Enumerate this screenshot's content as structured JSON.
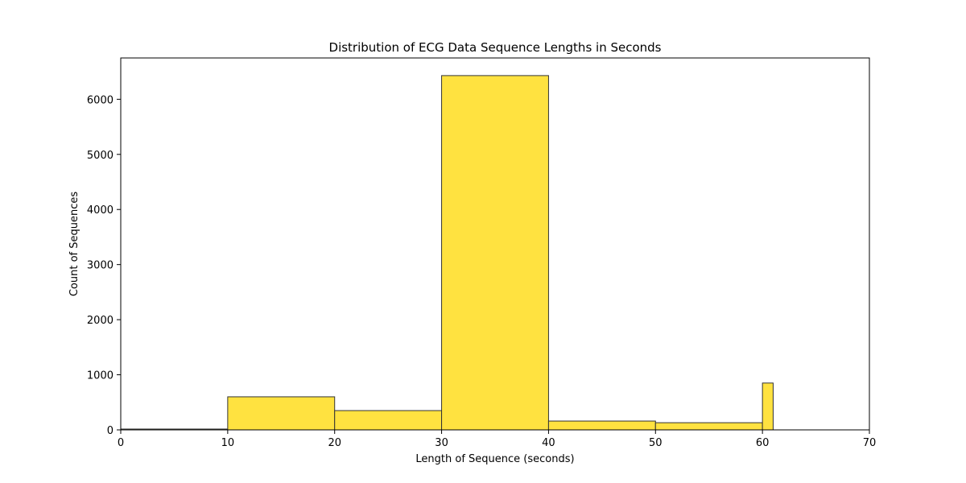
{
  "chart_data": {
    "type": "bar",
    "title": "Distribution of ECG Data Sequence Lengths in Seconds",
    "xlabel": "Length of Sequence (seconds)",
    "ylabel": "Count of Sequences",
    "xlim": [
      0,
      70
    ],
    "ylim": [
      0,
      6750
    ],
    "grid": false,
    "x_ticks": [
      0,
      10,
      20,
      30,
      40,
      50,
      60,
      70
    ],
    "y_ticks": [
      0,
      1000,
      2000,
      3000,
      4000,
      5000,
      6000
    ],
    "bins": [
      {
        "start": 0,
        "end": 10,
        "value": 15
      },
      {
        "start": 10,
        "end": 20,
        "value": 600
      },
      {
        "start": 20,
        "end": 30,
        "value": 350
      },
      {
        "start": 30,
        "end": 40,
        "value": 6430
      },
      {
        "start": 40,
        "end": 50,
        "value": 160
      },
      {
        "start": 50,
        "end": 60,
        "value": 130
      },
      {
        "start": 60,
        "end": 61,
        "value": 850
      }
    ],
    "bar_color": "#ffe240",
    "edge_color": "#333333"
  }
}
